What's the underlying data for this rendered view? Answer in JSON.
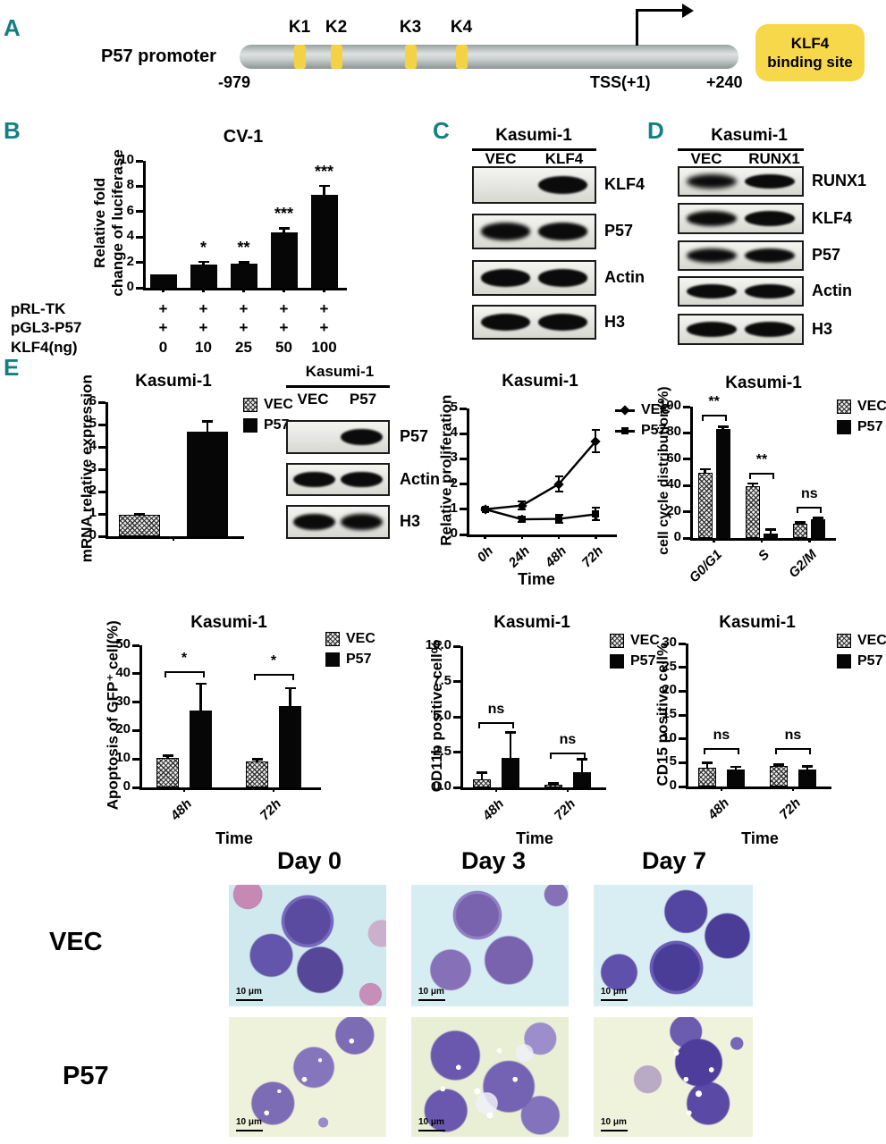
{
  "colors": {
    "panel_letter_teal": "#128083",
    "site_yellow": "#f4d246",
    "box_yellow": "#f8d84b",
    "bar_black": "#060606"
  },
  "panelA": {
    "letter": "A",
    "promoter_label": "P57  promoter",
    "sites": [
      "K1",
      "K2",
      "K3",
      "K4"
    ],
    "left_coord": "-979",
    "tss_label": "TSS(+1)",
    "right_coord": "+240",
    "box": "KLF4\nbinding site"
  },
  "panelB": {
    "letter": "B"
  },
  "panelC": {
    "letter": "C",
    "blot": {
      "title": "Kasumi-1",
      "lanes": [
        "VEC",
        "KLF4"
      ],
      "rows": [
        {
          "label": "KLF4",
          "bands": [
            0,
            3
          ]
        },
        {
          "label": "P57",
          "bands": [
            2,
            2.5
          ]
        },
        {
          "label": "Actin",
          "bands": [
            3,
            3
          ]
        },
        {
          "label": "H3",
          "bands": [
            3,
            3
          ]
        }
      ]
    }
  },
  "panelD": {
    "letter": "D",
    "blot": {
      "title": "Kasumi-1",
      "lanes": [
        "VEC",
        "RUNX1"
      ],
      "rows": [
        {
          "label": "RUNX1",
          "bands": [
            1,
            3
          ]
        },
        {
          "label": "KLF4",
          "bands": [
            2,
            3
          ]
        },
        {
          "label": "P57",
          "bands": [
            1.5,
            2.5
          ]
        },
        {
          "label": "Actin",
          "bands": [
            3,
            3
          ]
        },
        {
          "label": "H3",
          "bands": [
            3,
            3
          ]
        }
      ]
    }
  },
  "panelE": {
    "letter": "E",
    "blot": {
      "title": "Kasumi-1",
      "lanes": [
        "VEC",
        "P57"
      ],
      "rows": [
        {
          "label": "P57",
          "bands": [
            0,
            3
          ]
        },
        {
          "label": "Actin",
          "bands": [
            3,
            3
          ]
        },
        {
          "label": "H3",
          "bands": [
            2.5,
            2
          ]
        }
      ]
    }
  },
  "microscopy": {
    "columns": [
      "Day 0",
      "Day 3",
      "Day 7"
    ],
    "rows": [
      "VEC",
      "P57"
    ],
    "scale": "10 μm"
  },
  "chart_data": [
    {
      "id": "luciferase",
      "type": "bar",
      "title": "CV-1",
      "ylabel": "Relative fold\nchange of luciferase",
      "categories": [
        "0",
        "10",
        "25",
        "50",
        "100"
      ],
      "series": [
        {
          "name": "",
          "style": "solid",
          "values": [
            1.05,
            1.85,
            1.9,
            4.35,
            7.35
          ],
          "errors": [
            0,
            0.2,
            0.12,
            0.35,
            0.7
          ]
        }
      ],
      "point_labels": [
        "",
        "*",
        "**",
        "***",
        "***"
      ],
      "yticks": [
        0,
        2,
        4,
        6,
        8,
        10
      ],
      "ylim": [
        0,
        10
      ],
      "grid": false,
      "cat_labels": false,
      "table_rows": [
        {
          "label": "pRL-TK",
          "cells": [
            "+",
            "+",
            "+",
            "+",
            "+"
          ]
        },
        {
          "label": "pGL3-P57",
          "cells": [
            "+",
            "+",
            "+",
            "+",
            "+"
          ]
        },
        {
          "label": "KLF4(ng)",
          "cells": [
            "0",
            "10",
            "25",
            "50",
            "100"
          ]
        }
      ]
    },
    {
      "id": "mrna",
      "type": "bar",
      "title": "Kasumi-1",
      "ylabel": "mRNA relative expression",
      "categories": [
        "VEC",
        "P57"
      ],
      "bar_styles": [
        "hatch",
        "solid"
      ],
      "series": [
        {
          "name": "",
          "values": [
            0.97,
            4.7
          ],
          "errors": [
            0.05,
            0.45
          ]
        }
      ],
      "yticks": [
        0,
        1,
        2,
        3,
        4,
        5,
        6
      ],
      "ylim": [
        0,
        6
      ],
      "grid": false,
      "cat_labels": false,
      "legend": [
        {
          "label": "VEC",
          "style": "hatch"
        },
        {
          "label": "P57",
          "style": "solid"
        }
      ]
    },
    {
      "id": "proliferation",
      "type": "line",
      "title": "Kasumi-1",
      "ylabel": "Relative proliferation",
      "xlabel": "Time",
      "x": [
        "0h",
        "24h",
        "48h",
        "72h"
      ],
      "series": [
        {
          "name": "VEC",
          "marker": "diamond",
          "values": [
            1.0,
            1.15,
            2.0,
            3.7
          ],
          "errors": [
            0.05,
            0.15,
            0.3,
            0.45
          ]
        },
        {
          "name": "P57",
          "marker": "square",
          "values": [
            1.0,
            0.6,
            0.62,
            0.8
          ],
          "errors": [
            0.05,
            0.12,
            0.15,
            0.25
          ]
        }
      ],
      "below_marks": [
        "",
        "*",
        "*",
        "*"
      ],
      "yticks": [
        0,
        1,
        2,
        3,
        4,
        5
      ],
      "ylim": [
        0,
        5
      ],
      "grid": false,
      "legend": [
        {
          "label": "VEC",
          "style": "line-diamond"
        },
        {
          "label": "P57",
          "style": "line-square"
        }
      ]
    },
    {
      "id": "cellcycle",
      "type": "bar",
      "title": "Kasumi-1",
      "ylabel": "cell cycle distribution(%)",
      "categories": [
        "G0/G1",
        "S",
        "G2/M"
      ],
      "series": [
        {
          "name": "VEC",
          "style": "hatch",
          "values": [
            50,
            39.5,
            11
          ],
          "errors": [
            2.5,
            2,
            1
          ]
        },
        {
          "name": "P57",
          "style": "solid",
          "values": [
            83,
            3.5,
            14
          ],
          "errors": [
            2,
            3,
            1.5
          ]
        }
      ],
      "sig": [
        {
          "cat": 0,
          "label": "**",
          "y": 94
        },
        {
          "cat": 1,
          "label": "**",
          "y": 50
        },
        {
          "cat": 2,
          "label": "ns",
          "y": 24
        }
      ],
      "yticks": [
        0,
        20,
        40,
        60,
        80,
        100
      ],
      "ylim": [
        0,
        100
      ],
      "grid": false,
      "legend": [
        {
          "label": "VEC",
          "style": "hatch"
        },
        {
          "label": "P57",
          "style": "solid"
        }
      ]
    },
    {
      "id": "apoptosis",
      "type": "bar",
      "title": "Kasumi-1",
      "ylabel": "Apoptosis of GFP⁺ cell(%)",
      "xlabel": "Time",
      "categories": [
        "48h",
        "72h"
      ],
      "series": [
        {
          "name": "VEC",
          "style": "hatch",
          "values": [
            10.3,
            9.2
          ],
          "errors": [
            1,
            0.8
          ]
        },
        {
          "name": "P57",
          "style": "solid",
          "values": [
            27,
            28.5
          ],
          "errors": [
            9.5,
            6.5
          ]
        }
      ],
      "sig": [
        {
          "cat": 0,
          "label": "*",
          "y": 41
        },
        {
          "cat": 1,
          "label": "*",
          "y": 40
        }
      ],
      "yticks": [
        0,
        10,
        20,
        30,
        40,
        50
      ],
      "ylim": [
        0,
        50
      ],
      "grid": false,
      "legend": [
        {
          "label": "VEC",
          "style": "hatch"
        },
        {
          "label": "P57",
          "style": "solid"
        }
      ]
    },
    {
      "id": "cd11b",
      "type": "bar",
      "title": "Kasumi-1",
      "ylabel": "CD11b positive cell%",
      "xlabel": "Time",
      "categories": [
        "48h",
        "72h"
      ],
      "series": [
        {
          "name": "VEC",
          "style": "hatch",
          "values": [
            0.6,
            0.2
          ],
          "errors": [
            0.45,
            0.1
          ]
        },
        {
          "name": "P57",
          "style": "solid",
          "values": [
            2.1,
            1.1
          ],
          "errors": [
            1.8,
            0.9
          ]
        }
      ],
      "sig": [
        {
          "cat": 0,
          "label": "ns",
          "y": 4.6
        },
        {
          "cat": 1,
          "label": "ns",
          "y": 2.5
        }
      ],
      "yticks": [
        "0.0",
        "2.5",
        "5.0",
        "7.5",
        "10.0"
      ],
      "ylim": [
        0,
        10
      ],
      "grid": false,
      "legend": [
        {
          "label": "VEC",
          "style": "hatch"
        },
        {
          "label": "P57",
          "style": "solid"
        }
      ]
    },
    {
      "id": "cd15",
      "type": "bar",
      "title": "Kasumi-1",
      "ylabel": "CD15 positive cell%",
      "xlabel": "Time",
      "categories": [
        "48h",
        "72h"
      ],
      "series": [
        {
          "name": "VEC",
          "style": "hatch",
          "values": [
            4.0,
            4.3
          ],
          "errors": [
            1.0,
            0.3
          ]
        },
        {
          "name": "P57",
          "style": "solid",
          "values": [
            3.5,
            3.5
          ],
          "errors": [
            0.7,
            0.8
          ]
        }
      ],
      "sig": [
        {
          "cat": 0,
          "label": "ns",
          "y": 8
        },
        {
          "cat": 1,
          "label": "ns",
          "y": 8
        }
      ],
      "yticks": [
        0,
        5,
        10,
        15,
        20,
        25,
        30
      ],
      "ylim": [
        0,
        30
      ],
      "grid": false,
      "legend": [
        {
          "label": "VEC",
          "style": "hatch"
        },
        {
          "label": "P57",
          "style": "solid"
        }
      ]
    }
  ]
}
